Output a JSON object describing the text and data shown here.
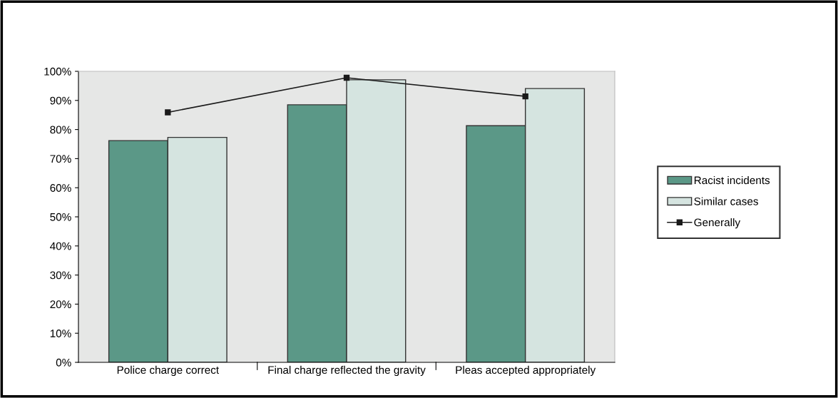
{
  "chart_data": {
    "type": "bar",
    "categories": [
      "Police charge correct",
      "Final charge reflected the gravity",
      "Pleas accepted appropriately"
    ],
    "series": [
      {
        "name": "Racist incidents",
        "color": "#5b9887",
        "values": [
          76.2,
          88.5,
          81.3
        ]
      },
      {
        "name": "Similar cases",
        "color": "#d5e4e0",
        "values": [
          77.3,
          97.1,
          94.1
        ]
      },
      {
        "name": "Generally",
        "type": "line",
        "color": "#1a1a1a",
        "values": [
          85.9,
          97.8,
          91.4
        ],
        "marker": "square"
      }
    ],
    "ylim": [
      0,
      100
    ],
    "yticks": [
      {
        "value": 0,
        "label": "0%"
      },
      {
        "value": 10,
        "label": "10%"
      },
      {
        "value": 20,
        "label": "20%"
      },
      {
        "value": 30,
        "label": "30%"
      },
      {
        "value": 40,
        "label": "40%"
      },
      {
        "value": 50,
        "label": "50%"
      },
      {
        "value": 60,
        "label": "60%"
      },
      {
        "value": 70,
        "label": "70%"
      },
      {
        "value": 80,
        "label": "80%"
      },
      {
        "value": 90,
        "label": "90%"
      },
      {
        "value": 100,
        "label": "100%"
      }
    ],
    "grid": false,
    "legend": "right"
  }
}
